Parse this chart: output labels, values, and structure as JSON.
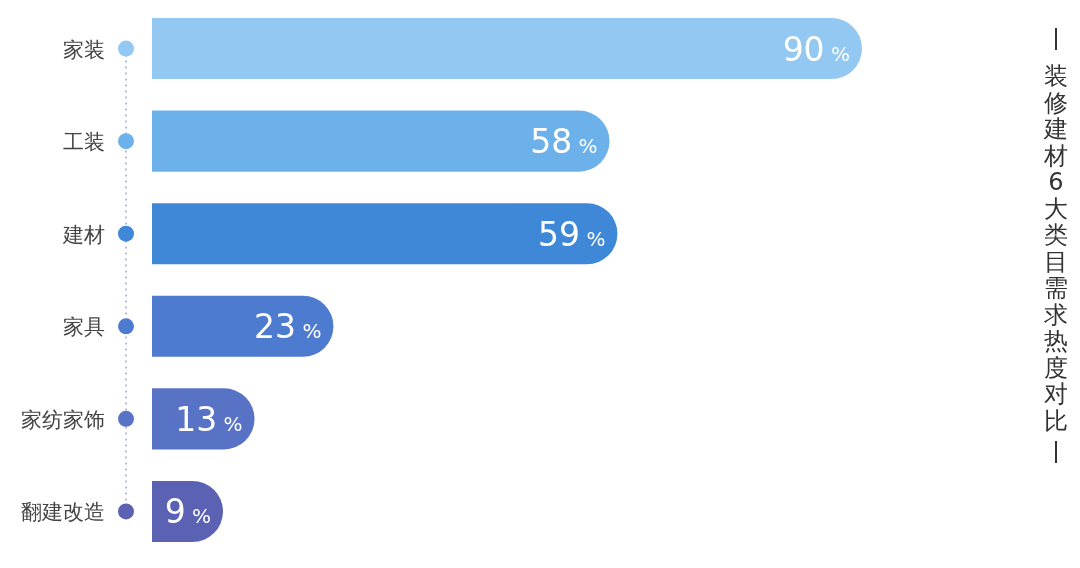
{
  "chart_data": {
    "type": "bar",
    "orientation": "horizontal",
    "title": "装修建材6大类目需求热度对比",
    "categories": [
      "家装",
      "工装",
      "建材",
      "家具",
      "家纺家饰",
      "翻建改造"
    ],
    "values": [
      90,
      58,
      59,
      23,
      13,
      9
    ],
    "value_labels": [
      "90 %",
      "58 %",
      "59 %",
      "23 %",
      "13 %",
      "9 %"
    ],
    "colors": [
      "#92c8f2",
      "#6cb1ea",
      "#3f88d8",
      "#4d7bcf",
      "#5872c6",
      "#5b62b3"
    ]
  }
}
